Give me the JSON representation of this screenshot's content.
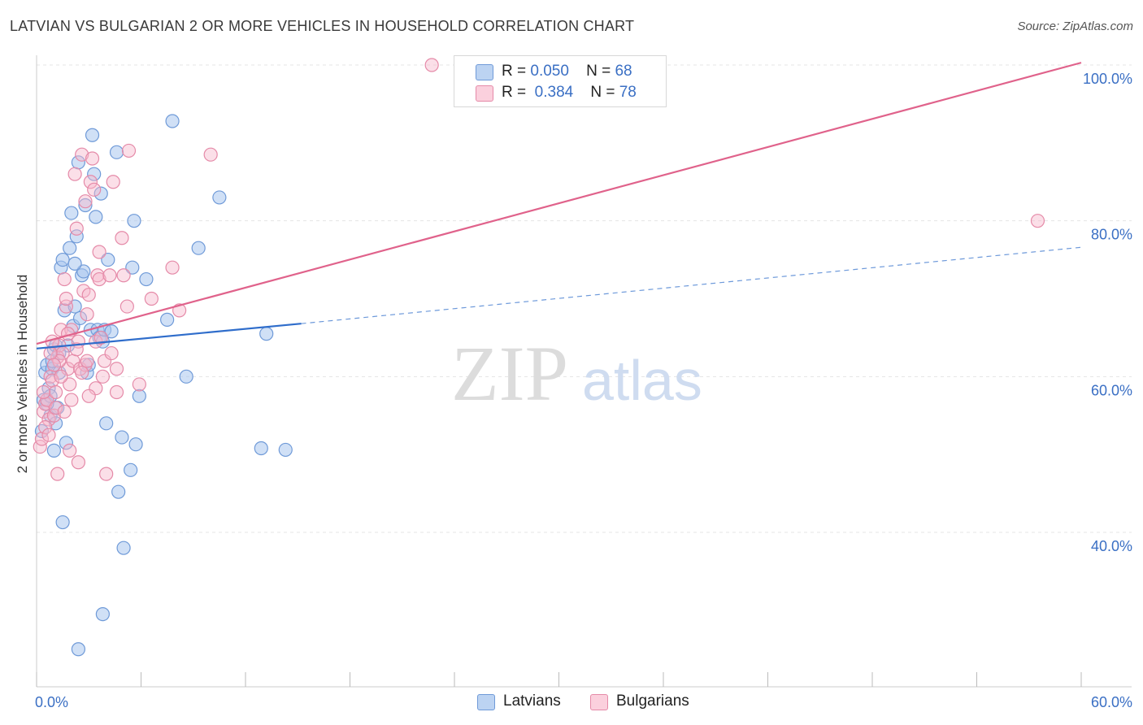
{
  "title": "LATVIAN VS BULGARIAN 2 OR MORE VEHICLES IN HOUSEHOLD CORRELATION CHART",
  "source": "Source: ZipAtlas.com",
  "watermark": {
    "zip": "ZIP",
    "atlas": "atlas"
  },
  "legend": {
    "latvians": {
      "r_label": "R =",
      "r_value": "0.050",
      "n_label": "N =",
      "n_value": "68"
    },
    "bulgarians": {
      "r_label": "R =",
      "r_value": "0.384",
      "n_label": "N =",
      "n_value": "78"
    }
  },
  "colors": {
    "blue_fill": "#a9c6ee",
    "blue_stroke": "#6f9ad8",
    "blue_line": "#2f6dcb",
    "pink_fill": "#f7b9cc",
    "pink_stroke": "#e58aa8",
    "pink_line": "#e0628b",
    "axis_label": "#3a6fc4",
    "grid": "#e4e4e4"
  },
  "chart_data": {
    "type": "scatter",
    "title": "LATVIAN VS BULGARIAN 2 OR MORE VEHICLES IN HOUSEHOLD CORRELATION CHART",
    "xlabel": "",
    "ylabel": "2 or more Vehicles in Household",
    "xlim": [
      0,
      60
    ],
    "ylim": [
      20,
      102
    ],
    "x_tick_labels": [
      "0.0%",
      "60.0%"
    ],
    "y_ticks": [
      40,
      60,
      80,
      100
    ],
    "y_tick_labels": [
      "40.0%",
      "60.0%",
      "80.0%",
      "100.0%"
    ],
    "legend_position": "bottom-center",
    "series": [
      {
        "name": "Latvians",
        "r": 0.05,
        "n": 68,
        "trend": {
          "x0": 0,
          "y0": 63.6,
          "x1": 15.2,
          "y1": 66.8,
          "dashed_to_x": 60,
          "dashed_to_y": 76.6
        },
        "points": [
          [
            0.3,
            53.0
          ],
          [
            0.4,
            57.0
          ],
          [
            0.5,
            60.5
          ],
          [
            0.6,
            61.5
          ],
          [
            0.7,
            58.5
          ],
          [
            0.8,
            55.0
          ],
          [
            0.9,
            61.0
          ],
          [
            1.0,
            63.5
          ],
          [
            1.1,
            54.0
          ],
          [
            1.2,
            56.0
          ],
          [
            1.3,
            60.5
          ],
          [
            1.4,
            74.0
          ],
          [
            1.5,
            75.0
          ],
          [
            1.6,
            68.5
          ],
          [
            1.7,
            51.5
          ],
          [
            1.5,
            41.3
          ],
          [
            1.8,
            64.0
          ],
          [
            1.9,
            76.5
          ],
          [
            2.0,
            81.0
          ],
          [
            2.1,
            66.5
          ],
          [
            2.2,
            69.0
          ],
          [
            2.3,
            78.0
          ],
          [
            2.4,
            87.5
          ],
          [
            2.5,
            67.5
          ],
          [
            2.6,
            73.0
          ],
          [
            2.7,
            73.5
          ],
          [
            2.8,
            82.0
          ],
          [
            2.9,
            60.5
          ],
          [
            3.0,
            61.5
          ],
          [
            3.1,
            66.0
          ],
          [
            3.2,
            91.0
          ],
          [
            3.3,
            86.0
          ],
          [
            3.4,
            80.5
          ],
          [
            3.5,
            66.0
          ],
          [
            3.6,
            65.0
          ],
          [
            3.7,
            83.5
          ],
          [
            3.8,
            64.5
          ],
          [
            3.9,
            66.0
          ],
          [
            4.0,
            54.0
          ],
          [
            4.1,
            75.0
          ],
          [
            4.3,
            65.8
          ],
          [
            4.6,
            88.8
          ],
          [
            4.7,
            45.2
          ],
          [
            4.9,
            52.2
          ],
          [
            5.0,
            38.0
          ],
          [
            5.4,
            48.0
          ],
          [
            5.5,
            74.0
          ],
          [
            5.6,
            80.0
          ],
          [
            5.7,
            51.3
          ],
          [
            5.9,
            57.5
          ],
          [
            6.3,
            72.5
          ],
          [
            7.5,
            67.3
          ],
          [
            7.8,
            92.8
          ],
          [
            8.6,
            60.0
          ],
          [
            9.3,
            76.5
          ],
          [
            10.5,
            83.0
          ],
          [
            12.9,
            50.8
          ],
          [
            13.2,
            65.5
          ],
          [
            14.3,
            50.6
          ],
          [
            1.1,
            64.0
          ],
          [
            0.9,
            62.0
          ],
          [
            2.2,
            74.5
          ],
          [
            1.0,
            50.5
          ],
          [
            3.8,
            29.5
          ],
          [
            2.4,
            25.0
          ],
          [
            0.6,
            56.5
          ],
          [
            1.3,
            63.0
          ],
          [
            0.8,
            57.5
          ]
        ]
      },
      {
        "name": "Bulgarians",
        "r": 0.384,
        "n": 78,
        "trend": {
          "x0": 0,
          "y0": 64.2,
          "x1": 60,
          "y1": 100.3
        },
        "points": [
          [
            0.2,
            51.0
          ],
          [
            0.3,
            52.0
          ],
          [
            0.4,
            55.5
          ],
          [
            0.5,
            56.5
          ],
          [
            0.6,
            57.0
          ],
          [
            0.7,
            54.5
          ],
          [
            0.8,
            60.0
          ],
          [
            0.9,
            59.5
          ],
          [
            1.0,
            55.0
          ],
          [
            1.1,
            58.0
          ],
          [
            1.2,
            62.5
          ],
          [
            1.3,
            64.0
          ],
          [
            1.4,
            66.0
          ],
          [
            1.5,
            63.0
          ],
          [
            1.6,
            72.5
          ],
          [
            1.7,
            69.0
          ],
          [
            1.8,
            61.0
          ],
          [
            1.9,
            59.0
          ],
          [
            2.0,
            57.0
          ],
          [
            2.1,
            62.0
          ],
          [
            2.2,
            86.0
          ],
          [
            2.3,
            79.0
          ],
          [
            2.4,
            64.5
          ],
          [
            2.5,
            61.0
          ],
          [
            2.6,
            88.5
          ],
          [
            2.7,
            71.0
          ],
          [
            2.8,
            82.5
          ],
          [
            2.9,
            68.0
          ],
          [
            3.0,
            70.5
          ],
          [
            3.1,
            85.0
          ],
          [
            3.2,
            88.0
          ],
          [
            3.3,
            84.0
          ],
          [
            3.4,
            64.5
          ],
          [
            3.5,
            73.0
          ],
          [
            3.6,
            72.5
          ],
          [
            3.7,
            65.0
          ],
          [
            3.8,
            60.0
          ],
          [
            3.9,
            62.0
          ],
          [
            4.0,
            47.5
          ],
          [
            4.2,
            73.0
          ],
          [
            4.4,
            85.0
          ],
          [
            4.6,
            61.0
          ],
          [
            4.9,
            77.8
          ],
          [
            5.0,
            73.0
          ],
          [
            5.2,
            69.0
          ],
          [
            5.3,
            89.0
          ],
          [
            5.9,
            59.0
          ],
          [
            6.6,
            70.0
          ],
          [
            7.8,
            74.0
          ],
          [
            8.2,
            68.5
          ],
          [
            10.0,
            88.5
          ],
          [
            22.7,
            100.0
          ],
          [
            57.5,
            80.0
          ],
          [
            1.2,
            47.5
          ],
          [
            2.4,
            49.0
          ],
          [
            1.9,
            50.5
          ],
          [
            0.9,
            64.5
          ],
          [
            1.4,
            60.0
          ],
          [
            2.8,
            61.5
          ],
          [
            0.5,
            53.5
          ],
          [
            1.1,
            56.0
          ],
          [
            1.7,
            70.0
          ],
          [
            2.3,
            63.5
          ],
          [
            3.6,
            76.0
          ],
          [
            1.3,
            62.0
          ],
          [
            0.8,
            63.0
          ],
          [
            2.0,
            66.0
          ],
          [
            3.4,
            58.5
          ],
          [
            4.6,
            58.0
          ],
          [
            1.6,
            55.5
          ],
          [
            0.4,
            58.0
          ],
          [
            2.6,
            60.5
          ],
          [
            1.0,
            61.5
          ],
          [
            3.0,
            57.5
          ],
          [
            0.7,
            52.5
          ],
          [
            1.8,
            65.5
          ],
          [
            2.9,
            62.0
          ],
          [
            4.3,
            63.0
          ]
        ]
      }
    ]
  },
  "bottom_legend": {
    "latvians": "Latvians",
    "bulgarians": "Bulgarians"
  }
}
